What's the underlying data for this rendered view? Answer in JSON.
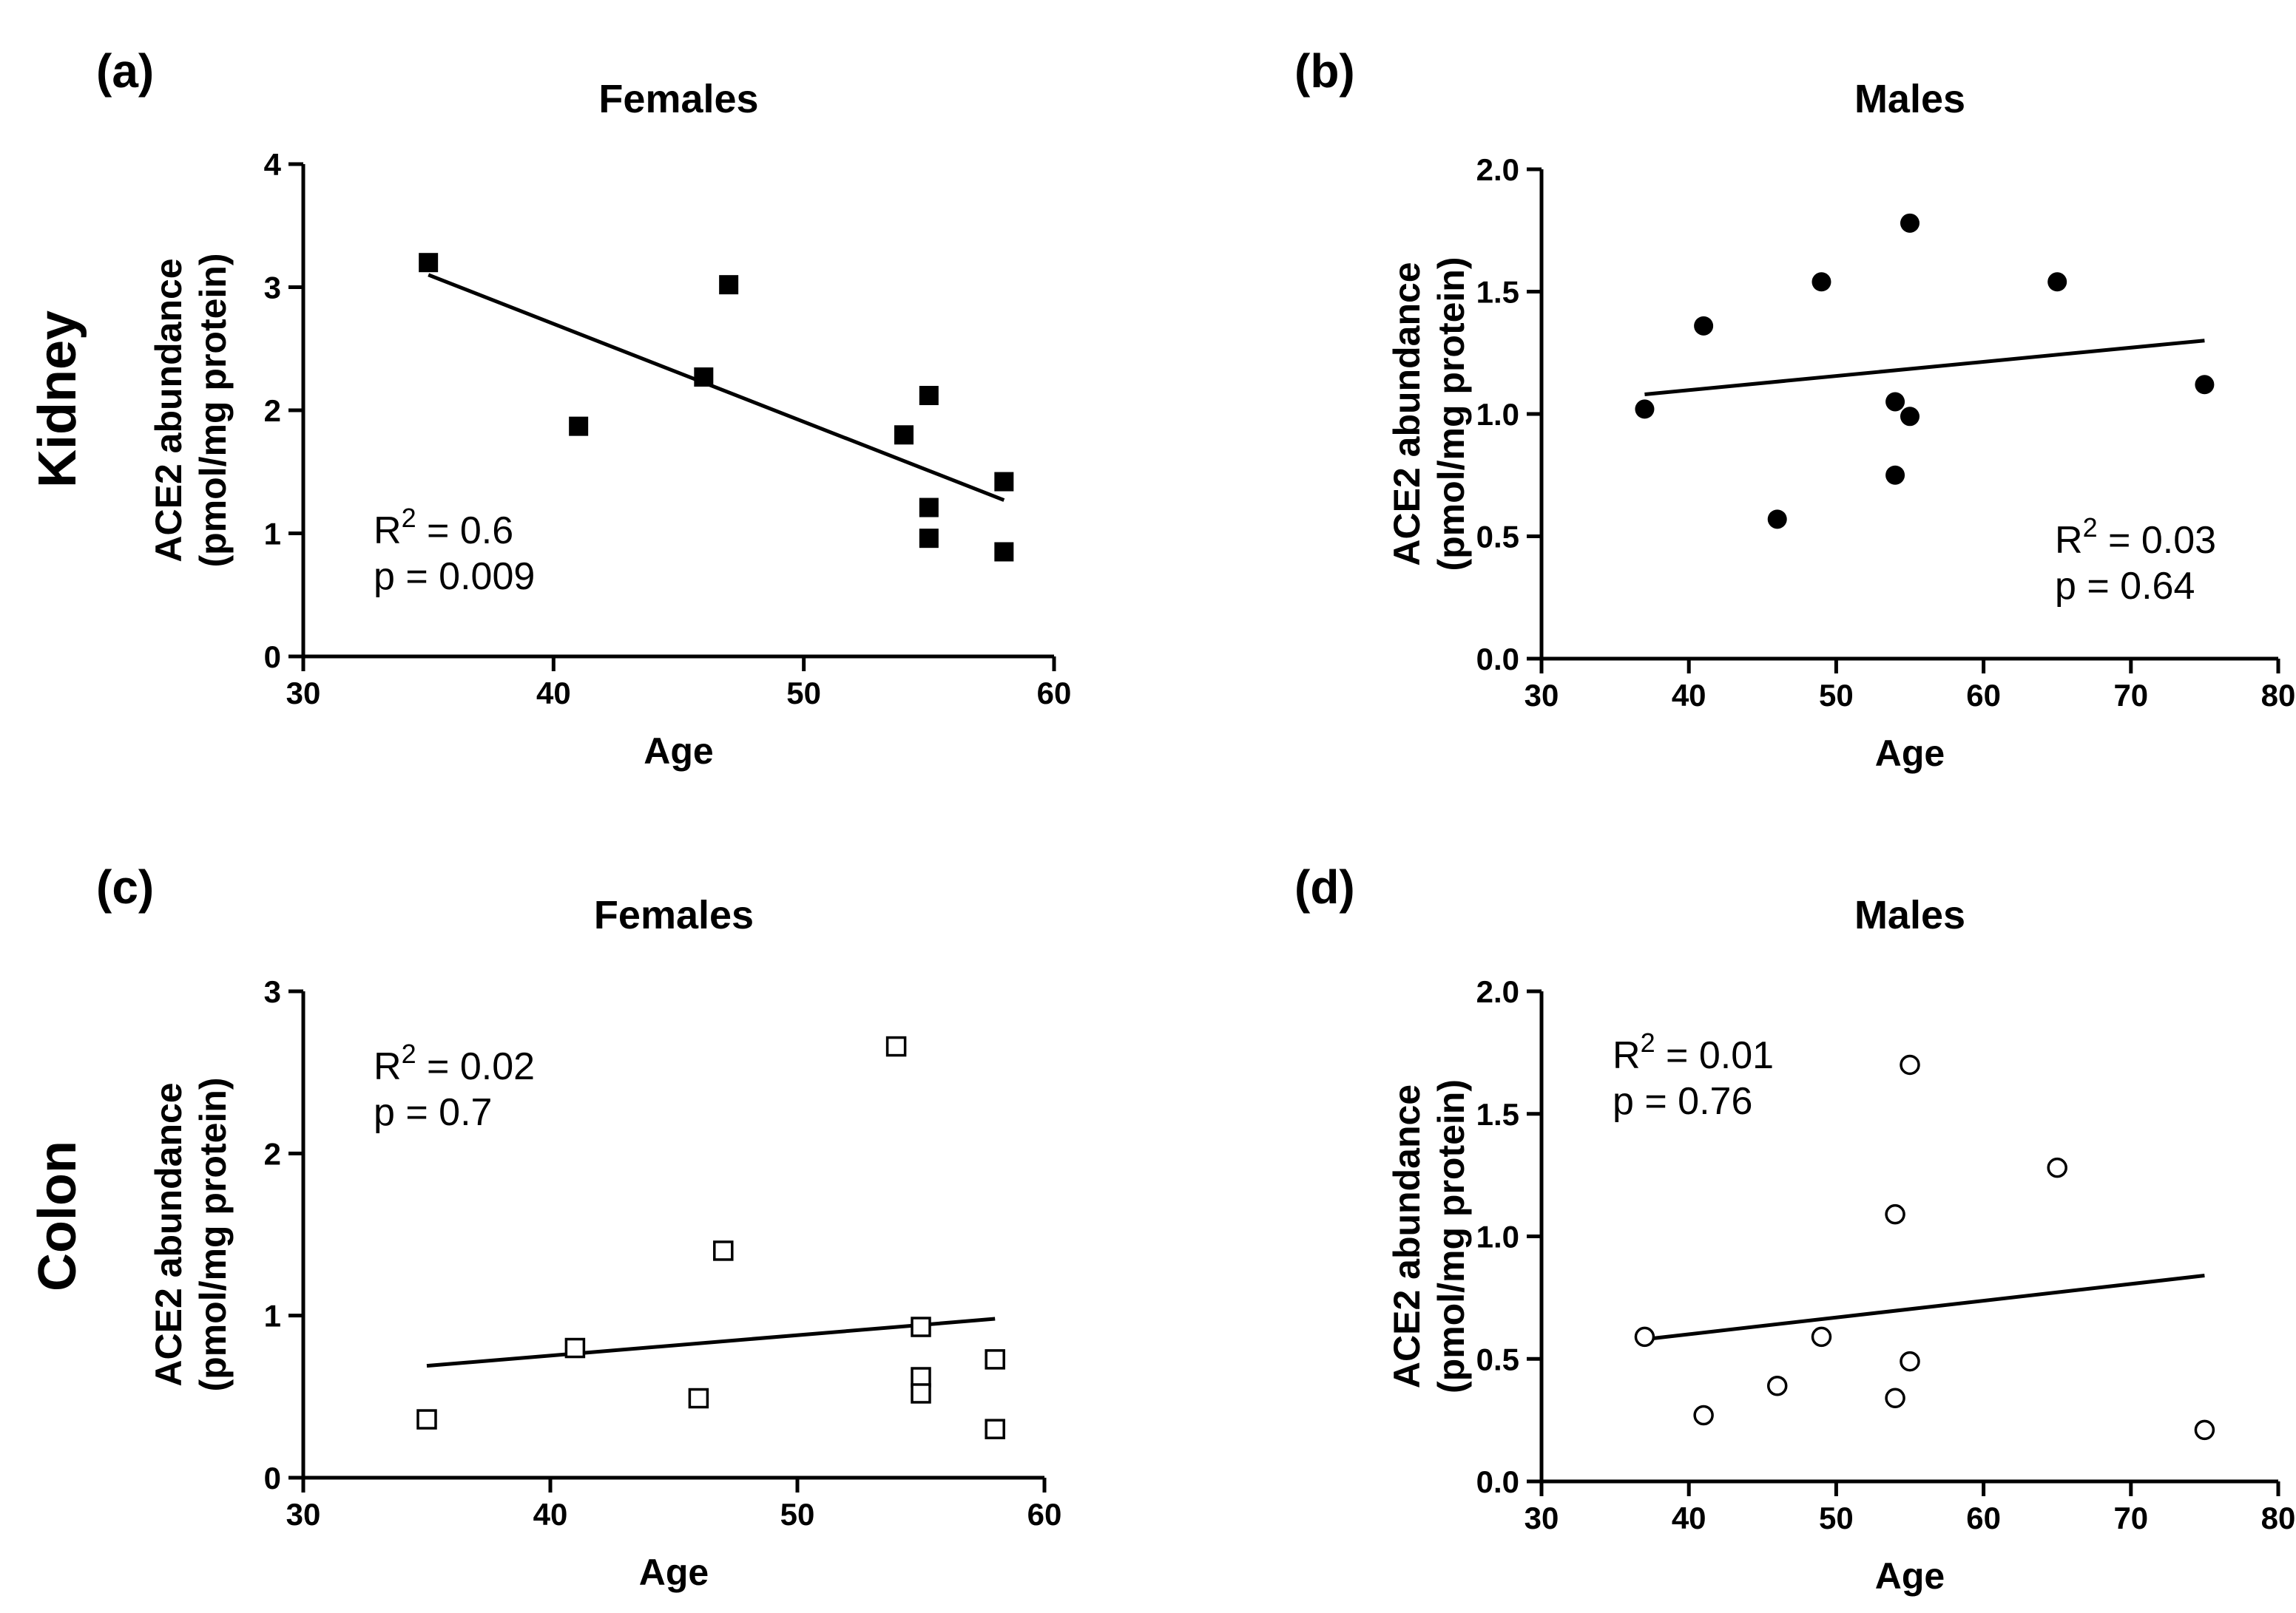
{
  "row_labels": [
    "Kidney",
    "Colon"
  ],
  "chart_data": [
    {
      "panel_label": "(a)",
      "title": "Females",
      "type": "scatter",
      "xlabel": "Age",
      "ylabel_line1": "ACE2 abundance",
      "ylabel_line2": "(pmol/mg protein)",
      "xlim": [
        30,
        60
      ],
      "xticks": [
        30,
        40,
        50,
        60
      ],
      "xtick_labels": [
        "30",
        "40",
        "50",
        "60"
      ],
      "ylim": [
        0,
        4
      ],
      "yticks": [
        0,
        1,
        2,
        3,
        4
      ],
      "ytick_labels": [
        "0",
        "1",
        "2",
        "3",
        "4"
      ],
      "marker": "filled-square",
      "points": {
        "x": [
          35,
          41,
          46,
          47,
          54,
          55,
          55,
          55,
          58,
          58
        ],
        "y": [
          3.2,
          1.87,
          2.27,
          3.02,
          1.8,
          2.12,
          1.21,
          0.96,
          1.42,
          0.85
        ]
      },
      "fit_line": {
        "x": [
          35,
          58
        ],
        "y": [
          3.1,
          1.27
        ]
      },
      "annotation": {
        "r2_label": "R",
        "r2_sup": "2",
        "r2_value": " = 0.6",
        "p_text": "p = 0.009",
        "position": "bottom-left"
      }
    },
    {
      "panel_label": "(b)",
      "title": "Males",
      "type": "scatter",
      "xlabel": "Age",
      "ylabel_line1": "ACE2 abundance",
      "ylabel_line2": "(pmol/mg protein)",
      "xlim": [
        30,
        80
      ],
      "xticks": [
        30,
        40,
        50,
        60,
        70,
        80
      ],
      "xtick_labels": [
        "30",
        "40",
        "50",
        "60",
        "70",
        "80"
      ],
      "ylim": [
        0,
        2
      ],
      "yticks": [
        0,
        0.5,
        1.0,
        1.5,
        2.0
      ],
      "ytick_labels": [
        "0.0",
        "0.5",
        "1.0",
        "1.5",
        "2.0"
      ],
      "marker": "filled-circle",
      "points": {
        "x": [
          37,
          41,
          46,
          49,
          54,
          54,
          55,
          55,
          65,
          75
        ],
        "y": [
          1.02,
          1.36,
          0.57,
          1.54,
          1.05,
          0.75,
          0.99,
          1.78,
          1.54,
          1.12
        ]
      },
      "fit_line": {
        "x": [
          37,
          75
        ],
        "y": [
          1.08,
          1.3
        ]
      },
      "annotation": {
        "r2_label": "R",
        "r2_sup": "2",
        "r2_value": " = 0.03",
        "p_text": "p = 0.64",
        "position": "bottom-right"
      }
    },
    {
      "panel_label": "(c)",
      "title": "Females",
      "type": "scatter",
      "xlabel": "Age",
      "ylabel_line1": "ACE2 abundance",
      "ylabel_line2": "(pmol/mg protein)",
      "xlim": [
        30,
        60
      ],
      "xticks": [
        30,
        40,
        50,
        60
      ],
      "xtick_labels": [
        "30",
        "40",
        "50",
        "60"
      ],
      "ylim": [
        0,
        3
      ],
      "yticks": [
        0,
        1,
        2,
        3
      ],
      "ytick_labels": [
        "0",
        "1",
        "2",
        "3"
      ],
      "marker": "open-square",
      "points": {
        "x": [
          35,
          41,
          46,
          47,
          54,
          55,
          55,
          55,
          58,
          58
        ],
        "y": [
          0.36,
          0.8,
          0.49,
          1.4,
          2.66,
          0.93,
          0.62,
          0.52,
          0.73,
          0.3
        ]
      },
      "fit_line": {
        "x": [
          35,
          58
        ],
        "y": [
          0.69,
          0.98
        ]
      },
      "annotation": {
        "r2_label": "R",
        "r2_sup": "2",
        "r2_value": " = 0.02",
        "p_text": "p = 0.7",
        "position": "top-left"
      }
    },
    {
      "panel_label": "(d)",
      "title": "Males",
      "type": "scatter",
      "xlabel": "Age",
      "ylabel_line1": "ACE2 abundance",
      "ylabel_line2": "(pmol/mg protein)",
      "xlim": [
        30,
        80
      ],
      "xticks": [
        30,
        40,
        50,
        60,
        70,
        80
      ],
      "xtick_labels": [
        "30",
        "40",
        "50",
        "60",
        "70",
        "80"
      ],
      "ylim": [
        0,
        2
      ],
      "yticks": [
        0,
        0.5,
        1.0,
        1.5,
        2.0
      ],
      "ytick_labels": [
        "0.0",
        "0.5",
        "1.0",
        "1.5",
        "2.0"
      ],
      "marker": "open-circle",
      "points": {
        "x": [
          37,
          41,
          46,
          49,
          54,
          54,
          55,
          55,
          65,
          75
        ],
        "y": [
          0.59,
          0.27,
          0.39,
          0.59,
          1.09,
          0.34,
          0.49,
          1.7,
          1.28,
          0.21
        ]
      },
      "fit_line": {
        "x": [
          37,
          75
        ],
        "y": [
          0.58,
          0.84
        ]
      },
      "annotation": {
        "r2_label": "R",
        "r2_sup": "2",
        "r2_value": " = 0.01",
        "p_text": "p = 0.76",
        "position": "top-left"
      }
    }
  ]
}
